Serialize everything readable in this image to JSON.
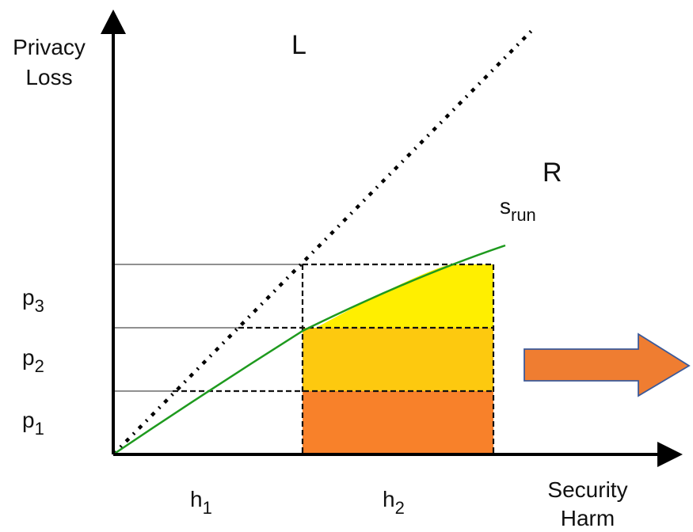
{
  "axes": {
    "y_label": [
      "Privacy",
      "Loss"
    ],
    "x_label": [
      "Security",
      "Harm"
    ]
  },
  "regions": {
    "left": "L",
    "right": "R"
  },
  "curve": {
    "base": "s",
    "subscript": "run"
  },
  "y_ticks": [
    {
      "base": "p",
      "subscript": "1"
    },
    {
      "base": "p",
      "subscript": "2"
    },
    {
      "base": "p",
      "subscript": "3"
    }
  ],
  "x_ticks": [
    {
      "base": "h",
      "subscript": "1"
    },
    {
      "base": "h",
      "subscript": "2"
    }
  ],
  "colors": {
    "axis": "#000000",
    "curve": "#1e9a1e",
    "band_low": "#f8812a",
    "band_mid": "#fdc90f",
    "band_high": "#ffef00",
    "arrow_fill": "#ef7d31",
    "arrow_stroke": "#3b5a9a"
  }
}
